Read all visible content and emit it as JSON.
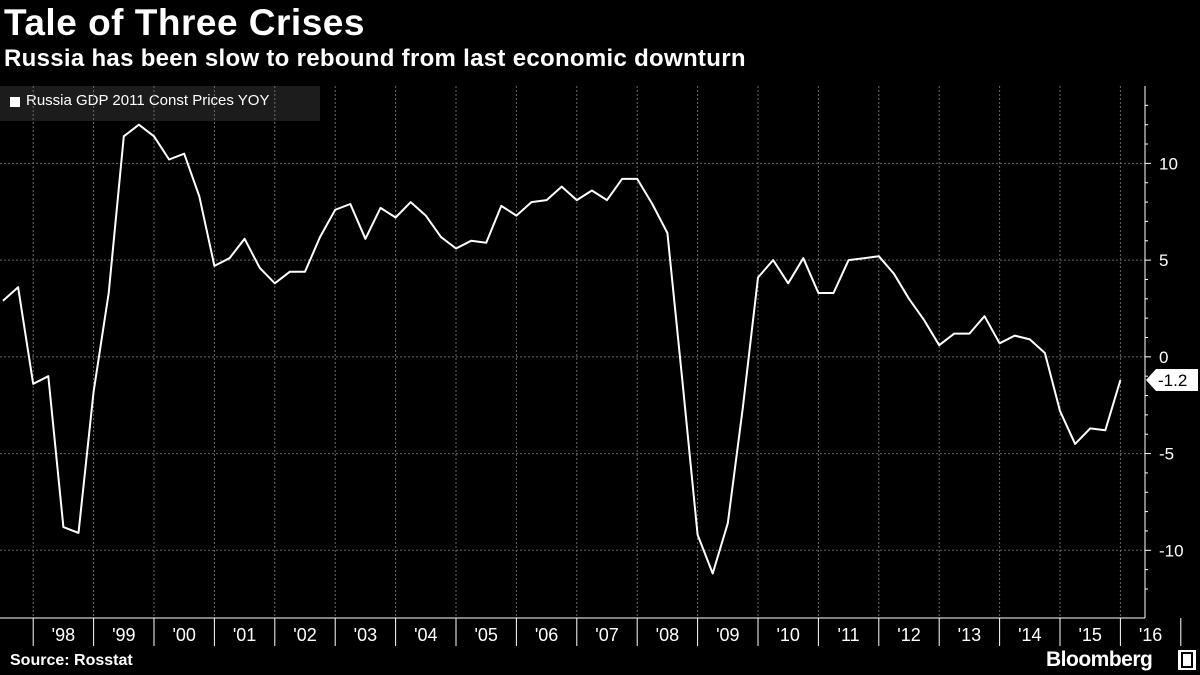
{
  "header": {
    "title": "Tale of Three Crises",
    "subtitle": "Russia has been slow to rebound from last economic downturn"
  },
  "footer": {
    "source": "Source: Rosstat",
    "brand": "Bloomberg"
  },
  "colors": {
    "background": "#000000",
    "line": "#ffffff",
    "grid": "#6a6a6a",
    "legend_bg": "#1c1c1c"
  },
  "chart_data": {
    "type": "line",
    "title": "Tale of Three Crises",
    "subtitle": "Russia has been slow to rebound from last economic downturn",
    "xlabel": "",
    "ylabel": "",
    "ylim": [
      -13.5,
      14
    ],
    "y_ticks": [
      10,
      5,
      0,
      -5,
      -10
    ],
    "y_axis_side": "right",
    "x_tick_labels": [
      "'98",
      "'99",
      "'00",
      "'01",
      "'02",
      "'03",
      "'04",
      "'05",
      "'06",
      "'07",
      "'08",
      "'09",
      "'10",
      "'11",
      "'12",
      "'13",
      "'14",
      "'15",
      "'16"
    ],
    "grid": true,
    "legend_position": "top-left",
    "last_value_label": "-1.2",
    "series": [
      {
        "name": "Russia GDP 2011 Const Prices YOY",
        "x": [
          "1997Q3",
          "1997Q4",
          "1998Q1",
          "1998Q2",
          "1998Q3",
          "1998Q4",
          "1999Q1",
          "1999Q2",
          "1999Q3",
          "1999Q4",
          "2000Q1",
          "2000Q2",
          "2000Q3",
          "2000Q4",
          "2001Q1",
          "2001Q2",
          "2001Q3",
          "2001Q4",
          "2002Q1",
          "2002Q2",
          "2002Q3",
          "2002Q4",
          "2003Q1",
          "2003Q2",
          "2003Q3",
          "2003Q4",
          "2004Q1",
          "2004Q2",
          "2004Q3",
          "2004Q4",
          "2005Q1",
          "2005Q2",
          "2005Q3",
          "2005Q4",
          "2006Q1",
          "2006Q2",
          "2006Q3",
          "2006Q4",
          "2007Q1",
          "2007Q2",
          "2007Q3",
          "2007Q4",
          "2008Q1",
          "2008Q2",
          "2008Q3",
          "2008Q4",
          "2009Q1",
          "2009Q2",
          "2009Q3",
          "2009Q4",
          "2010Q1",
          "2010Q2",
          "2010Q3",
          "2010Q4",
          "2011Q1",
          "2011Q2",
          "2011Q3",
          "2011Q4",
          "2012Q1",
          "2012Q2",
          "2012Q3",
          "2012Q4",
          "2013Q1",
          "2013Q2",
          "2013Q3",
          "2013Q4",
          "2014Q1",
          "2014Q2",
          "2014Q3",
          "2014Q4",
          "2015Q1",
          "2015Q2",
          "2015Q3",
          "2015Q4",
          "2016Q1"
        ],
        "values": [
          2.9,
          3.6,
          -1.4,
          -1.0,
          -8.8,
          -9.1,
          -1.8,
          3.3,
          11.4,
          12.0,
          11.4,
          10.2,
          10.5,
          8.3,
          4.7,
          5.1,
          6.1,
          4.6,
          3.8,
          4.4,
          4.4,
          6.2,
          7.6,
          7.9,
          6.1,
          7.7,
          7.2,
          8.0,
          7.3,
          6.2,
          5.6,
          6.0,
          5.9,
          7.8,
          7.3,
          8.0,
          8.1,
          8.8,
          8.1,
          8.6,
          8.1,
          9.2,
          9.2,
          7.9,
          6.4,
          -1.3,
          -9.2,
          -11.2,
          -8.6,
          -2.6,
          4.1,
          5.0,
          3.8,
          5.1,
          3.3,
          3.3,
          5.0,
          5.1,
          5.2,
          4.3,
          3.0,
          1.9,
          0.6,
          1.2,
          1.2,
          2.1,
          0.7,
          1.1,
          0.9,
          0.2,
          -2.8,
          -4.5,
          -3.7,
          -3.8,
          -1.2
        ]
      }
    ]
  }
}
